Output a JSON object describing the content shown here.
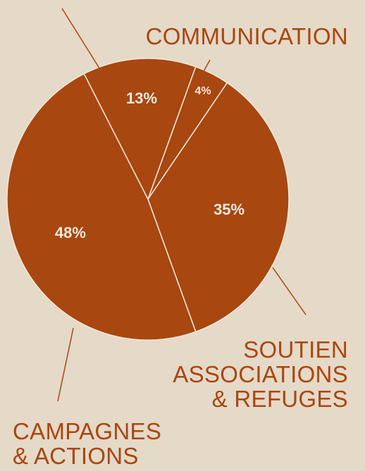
{
  "colors": {
    "background": "#e5d9c8",
    "slice": "#a8470f",
    "separator": "#f3e8da",
    "label": "#a8470f"
  },
  "chart_data": {
    "type": "pie",
    "slices": [
      {
        "label": "",
        "value": 13,
        "pct_label": "13%"
      },
      {
        "label": "COMMUNICATION",
        "value": 4,
        "pct_label": "4%"
      },
      {
        "label": "SOUTIEN ASSOCIATIONS & REFUGES",
        "value": 35,
        "pct_label": "35%"
      },
      {
        "label": "CAMPAGNES & ACTIONS",
        "value": 48,
        "pct_label": "48%"
      }
    ]
  },
  "labels": {
    "communication": "COMMUNICATION",
    "soutien_line1": "SOUTIEN",
    "soutien_line2": "ASSOCIATIONS",
    "soutien_line3": "& REFUGES",
    "campagnes_line1": "CAMPAGNES",
    "campagnes_line2": "& ACTIONS"
  }
}
